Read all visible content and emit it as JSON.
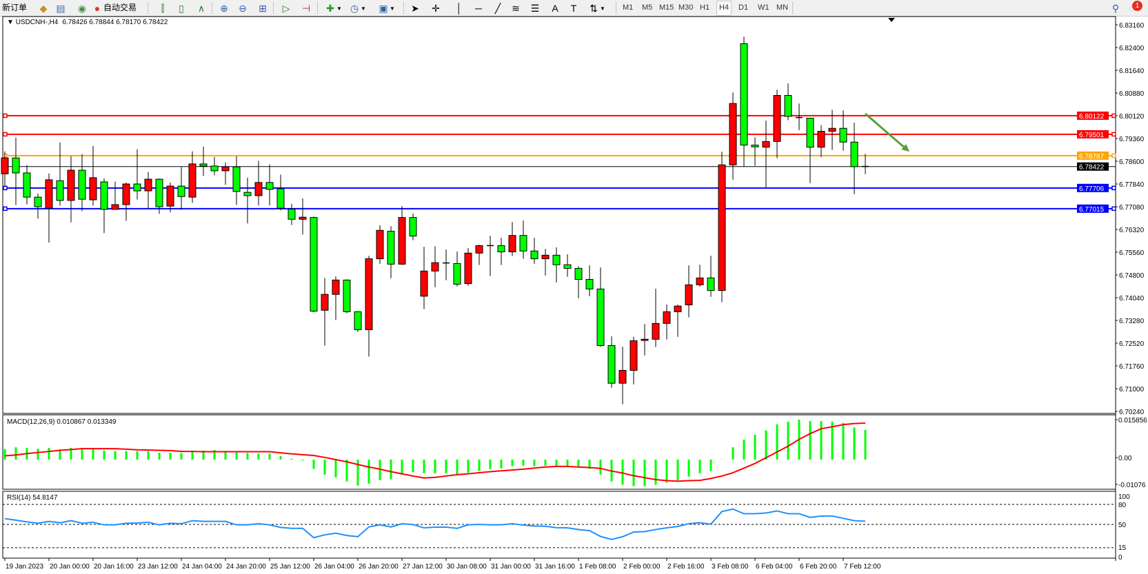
{
  "toolbar": {
    "new_order_label": "新订单",
    "auto_trading_label": "自动交易",
    "timeframes": [
      "M1",
      "M5",
      "M15",
      "M30",
      "H1",
      "H4",
      "D1",
      "W1",
      "MN"
    ],
    "active_timeframe": "H4",
    "notification_count": "1",
    "icons": [
      "new-order-icon",
      "market-watch-icon",
      "navigator-icon",
      "signals-icon",
      "auto-trading-icon",
      "bar-chart-icon",
      "candlestick-icon",
      "line-chart-icon",
      "zoom-in-icon",
      "zoom-out-icon",
      "tile-windows-icon",
      "auto-scroll-icon",
      "chart-shift-icon",
      "indicators-icon",
      "periods-icon",
      "templates-icon",
      "cursor-icon",
      "crosshair-icon",
      "vertical-line-icon",
      "horizontal-line-icon",
      "trendline-icon",
      "fibonacci-icon",
      "fibo-fan-icon",
      "text-icon",
      "text-label-icon",
      "arrows-icon",
      "search-icon",
      "chat-icon"
    ]
  },
  "header": {
    "symbol": "USDCNH-,H4",
    "ohlc": "6.78426 6.78844 6.78170 6.78422"
  },
  "chart_data": [
    {
      "type": "candlestick",
      "symbol": "USDCNH-",
      "timeframe": "H4",
      "bull_color": "#ff0000",
      "bear_color": "#00ff00",
      "ylim": [
        6.7024,
        6.8316
      ],
      "y_ticks": [
        "6.83160",
        "6.82400",
        "6.81640",
        "6.80880",
        "6.80120",
        "6.79360",
        "6.78600",
        "6.77840",
        "6.77080",
        "6.76320",
        "6.75560",
        "6.74800",
        "6.74040",
        "6.73280",
        "6.72520",
        "6.71760",
        "6.71000",
        "6.70240"
      ],
      "x_tick_labels": [
        "19 Jan 2023",
        "20 Jan 00:00",
        "20 Jan 16:00",
        "23 Jan 12:00",
        "24 Jan 04:00",
        "24 Jan 20:00",
        "25 Jan 12:00",
        "26 Jan 04:00",
        "26 Jan 20:00",
        "27 Jan 12:00",
        "30 Jan 08:00",
        "31 Jan 00:00",
        "31 Jan 16:00",
        "1 Feb 08:00",
        "2 Feb 00:00",
        "2 Feb 16:00",
        "3 Feb 08:00",
        "6 Feb 04:00",
        "6 Feb 20:00",
        "7 Feb 12:00"
      ],
      "bars_per_x_tick": 4,
      "ohlc_fields": [
        "open",
        "high",
        "low",
        "close"
      ],
      "candles": [
        [
          6.7818,
          6.7893,
          6.7778,
          6.7871
        ],
        [
          6.7871,
          6.7939,
          6.7714,
          6.7821
        ],
        [
          6.7821,
          6.7847,
          6.7716,
          6.774
        ],
        [
          6.774,
          6.7752,
          6.7668,
          6.7708
        ],
        [
          6.7703,
          6.7819,
          6.7588,
          6.7798
        ],
        [
          6.7795,
          6.7923,
          6.7712,
          6.7729
        ],
        [
          6.7729,
          6.7877,
          6.7656,
          6.783
        ],
        [
          6.783,
          6.7884,
          6.7693,
          6.7733
        ],
        [
          6.7731,
          6.7911,
          6.7712,
          6.7805
        ],
        [
          6.7791,
          6.7803,
          6.762,
          6.7699
        ],
        [
          6.7699,
          6.7792,
          6.7699,
          6.7715
        ],
        [
          6.7715,
          6.7789,
          6.7661,
          6.7784
        ],
        [
          6.7784,
          6.79,
          6.7732,
          6.7761
        ],
        [
          6.7761,
          6.7824,
          6.7703,
          6.78
        ],
        [
          6.78,
          6.7802,
          6.7684,
          6.7708
        ],
        [
          6.771,
          6.7789,
          6.7689,
          6.7777
        ],
        [
          6.7777,
          6.7841,
          6.7698,
          6.7742
        ],
        [
          6.774,
          6.7893,
          6.7721,
          6.7851
        ],
        [
          6.7851,
          6.7909,
          6.7811,
          6.7844
        ],
        [
          6.7844,
          6.7874,
          6.7813,
          6.7828
        ],
        [
          6.7828,
          6.7856,
          6.7781,
          6.7841
        ],
        [
          6.7841,
          6.7877,
          6.7714,
          6.7759
        ],
        [
          6.7756,
          6.7805,
          6.7652,
          6.7745
        ],
        [
          6.7745,
          6.7861,
          6.7712,
          6.7789
        ],
        [
          6.7789,
          6.7849,
          6.7712,
          6.7766
        ],
        [
          6.7768,
          6.7815,
          6.7696,
          6.7703
        ],
        [
          6.77,
          6.7718,
          6.7647,
          6.7666
        ],
        [
          6.7666,
          6.7736,
          6.7615,
          6.7673
        ],
        [
          6.7672,
          6.7675,
          6.7355,
          6.7359
        ],
        [
          6.7362,
          6.747,
          6.7244,
          6.7415
        ],
        [
          6.7415,
          6.7475,
          6.7329,
          6.7463
        ],
        [
          6.7463,
          6.7465,
          6.7352,
          6.7357
        ],
        [
          6.7357,
          6.7359,
          6.729,
          6.7297
        ],
        [
          6.7297,
          6.7544,
          6.7207,
          6.7534
        ],
        [
          6.7534,
          6.7646,
          6.7517,
          6.7629
        ],
        [
          6.7626,
          6.7643,
          6.7469,
          6.7516
        ],
        [
          6.7516,
          6.771,
          6.7513,
          6.7672
        ],
        [
          6.7672,
          6.7685,
          6.7596,
          6.761
        ],
        [
          6.7409,
          6.7574,
          6.7366,
          6.7493
        ],
        [
          6.7493,
          6.7576,
          6.7439,
          6.7521
        ],
        [
          6.752,
          6.7565,
          6.7462,
          6.752
        ],
        [
          6.7518,
          6.7558,
          6.7441,
          6.7449
        ],
        [
          6.7451,
          6.757,
          6.7444,
          6.7553
        ],
        [
          6.7553,
          6.7581,
          6.7513,
          6.7578
        ],
        [
          6.7578,
          6.7611,
          6.7476,
          6.7578
        ],
        [
          6.7578,
          6.7604,
          6.7513,
          6.7557
        ],
        [
          6.7557,
          6.7657,
          6.7543,
          6.7612
        ],
        [
          6.7612,
          6.7662,
          6.7534,
          6.756
        ],
        [
          6.756,
          6.7604,
          6.7517,
          6.7534
        ],
        [
          6.7534,
          6.7567,
          6.7478,
          6.7546
        ],
        [
          6.7546,
          6.7572,
          6.7455,
          6.7514
        ],
        [
          6.7514,
          6.7549,
          6.7474,
          6.7502
        ],
        [
          6.7502,
          6.7509,
          6.7402,
          6.7465
        ],
        [
          6.7465,
          6.7512,
          6.7409,
          6.7433
        ],
        [
          6.7433,
          6.7505,
          6.724,
          6.7244
        ],
        [
          6.7244,
          6.7275,
          6.7103,
          6.7118
        ],
        [
          6.7118,
          6.724,
          6.7048,
          6.7161
        ],
        [
          6.7161,
          6.7273,
          6.7114,
          6.726
        ],
        [
          6.7261,
          6.7316,
          6.7211,
          6.7265
        ],
        [
          6.7265,
          6.7434,
          6.7239,
          6.7318
        ],
        [
          6.7318,
          6.7381,
          6.7264,
          6.7357
        ],
        [
          6.7357,
          6.7381,
          6.7273,
          6.7376
        ],
        [
          6.738,
          6.7512,
          6.7338,
          6.7447
        ],
        [
          6.7447,
          6.7514,
          6.7441,
          6.747
        ],
        [
          6.747,
          6.7544,
          6.7407,
          6.7428
        ],
        [
          6.7428,
          6.7892,
          6.7389,
          6.7848
        ],
        [
          6.7848,
          6.809,
          6.7798,
          6.8053
        ],
        [
          6.8253,
          6.8276,
          6.7841,
          6.7914
        ],
        [
          6.7914,
          6.794,
          6.7845,
          6.7908
        ],
        [
          6.7907,
          6.7996,
          6.7773,
          6.7926
        ],
        [
          6.7926,
          6.8099,
          6.787,
          6.808
        ],
        [
          6.808,
          6.812,
          6.7997,
          6.801
        ],
        [
          6.8006,
          6.8053,
          6.7964,
          6.8006
        ],
        [
          6.8004,
          6.8004,
          6.7787,
          6.7907
        ],
        [
          6.7907,
          6.7981,
          6.7874,
          6.796
        ],
        [
          6.796,
          6.8032,
          6.7898,
          6.797
        ],
        [
          6.797,
          6.803,
          6.7895,
          6.7924
        ],
        [
          6.7924,
          6.7989,
          6.775,
          6.7842
        ],
        [
          6.78426,
          6.78844,
          6.7817,
          6.78422
        ]
      ],
      "levels": [
        {
          "price": 6.80122,
          "label": "6.80122",
          "color": "#ff0000"
        },
        {
          "price": 6.79501,
          "label": "6.79501",
          "color": "#ff0000"
        },
        {
          "price": 6.78787,
          "label": "6.78787",
          "color": "#ffa500"
        },
        {
          "price": 6.78422,
          "label": "6.78422",
          "color": "#000000",
          "kind": "bid"
        },
        {
          "price": 6.77706,
          "label": "6.77706",
          "color": "#0000ff"
        },
        {
          "price": 6.77015,
          "label": "6.77015",
          "color": "#0000ff"
        }
      ],
      "annotation_arrow": {
        "color": "#5a9e3a",
        "from": {
          "bar": 78,
          "price": 6.8019
        },
        "to": {
          "bar": 82,
          "price": 6.7892
        }
      }
    },
    {
      "type": "bar+line",
      "title": "MACD(12,26,9) 0.010867 0.013349",
      "ylim": [
        -0.01076,
        0.015856
      ],
      "y_ticks": [
        {
          "value": 0.015856,
          "label": "0.015856"
        },
        {
          "value": 0,
          "label": "0.00"
        },
        {
          "value": -0.01076,
          "label": "-0.01076"
        }
      ],
      "histogram_color": "#00ff00",
      "signal_color": "#ff0000",
      "histogram": [
        0.0039,
        0.0045,
        0.0043,
        0.004,
        0.0043,
        0.0038,
        0.0043,
        0.0038,
        0.0039,
        0.0033,
        0.0031,
        0.0031,
        0.0031,
        0.0031,
        0.0025,
        0.0025,
        0.0024,
        0.0033,
        0.0033,
        0.0035,
        0.0032,
        0.0026,
        0.0024,
        0.0022,
        0.0022,
        0.0013,
        0.0003,
        -0.0003,
        -0.0034,
        -0.0055,
        -0.0065,
        -0.008,
        -0.0095,
        -0.0088,
        -0.0075,
        -0.0072,
        -0.0055,
        -0.0046,
        -0.005,
        -0.005,
        -0.005,
        -0.0053,
        -0.0048,
        -0.0042,
        -0.0034,
        -0.0032,
        -0.0024,
        -0.0022,
        -0.0024,
        -0.0022,
        -0.0026,
        -0.0027,
        -0.0029,
        -0.0034,
        -0.0055,
        -0.008,
        -0.0092,
        -0.0097,
        -0.0097,
        -0.0092,
        -0.0084,
        -0.0076,
        -0.0062,
        -0.005,
        -0.0042,
        0.0001,
        0.0045,
        0.0073,
        0.0091,
        0.0107,
        0.0129,
        0.0139,
        0.0146,
        0.0141,
        0.0141,
        0.0139,
        0.0134,
        0.0118,
        0.010867
      ],
      "signal": [
        0.0014,
        0.0017,
        0.0022,
        0.0026,
        0.003,
        0.0034,
        0.0037,
        0.004,
        0.004,
        0.004,
        0.004,
        0.0038,
        0.0036,
        0.0035,
        0.0034,
        0.0033,
        0.003,
        0.003,
        0.0029,
        0.0029,
        0.0029,
        0.0029,
        0.0029,
        0.0029,
        0.0029,
        0.0025,
        0.0021,
        0.0018,
        0.0015,
        0.0008,
        0.0,
        -0.0008,
        -0.0018,
        -0.0027,
        -0.0035,
        -0.0044,
        -0.0052,
        -0.006,
        -0.0067,
        -0.0065,
        -0.006,
        -0.0055,
        -0.0052,
        -0.0048,
        -0.0044,
        -0.0041,
        -0.0038,
        -0.0035,
        -0.0031,
        -0.0027,
        -0.0025,
        -0.0025,
        -0.0027,
        -0.0029,
        -0.0032,
        -0.0042,
        -0.0049,
        -0.0059,
        -0.0066,
        -0.0073,
        -0.0077,
        -0.0079,
        -0.0077,
        -0.0076,
        -0.0069,
        -0.006,
        -0.0048,
        -0.0031,
        -0.0014,
        0.0007,
        0.0028,
        0.0049,
        0.0074,
        0.0095,
        0.0113,
        0.012,
        0.0128,
        0.0132,
        0.013349
      ]
    },
    {
      "type": "line",
      "title": "RSI(14) 54.8147",
      "ylim": [
        0,
        100
      ],
      "y_ticks": [
        "100",
        "80",
        "50",
        "15",
        "0"
      ],
      "levels": [
        80,
        50,
        15
      ],
      "color": "#1e90ff",
      "values": [
        58.7,
        56.3,
        53.8,
        51.7,
        54.5,
        52.4,
        55.6,
        51.7,
        53.1,
        49.3,
        49.3,
        51.7,
        52.1,
        53.1,
        49.3,
        51.7,
        51.0,
        55.6,
        54.5,
        54.5,
        54.5,
        49.3,
        49.3,
        51.0,
        49.3,
        45.5,
        44.1,
        44.1,
        30.1,
        34.3,
        36.8,
        33.3,
        31.5,
        46.2,
        49.3,
        46.2,
        51.0,
        49.7,
        44.8,
        45.8,
        45.8,
        44.1,
        49.3,
        50.0,
        49.3,
        49.3,
        51.0,
        49.0,
        47.6,
        47.2,
        45.1,
        44.8,
        42.3,
        40.6,
        31.9,
        27.4,
        31.5,
        38.5,
        39.2,
        42.3,
        44.8,
        46.9,
        51.0,
        52.4,
        50.3,
        69.2,
        73.0,
        66.0,
        66.0,
        67.1,
        70.2,
        66.0,
        66.0,
        60.5,
        62.5,
        62.5,
        59.1,
        55.6,
        54.8147
      ]
    }
  ]
}
